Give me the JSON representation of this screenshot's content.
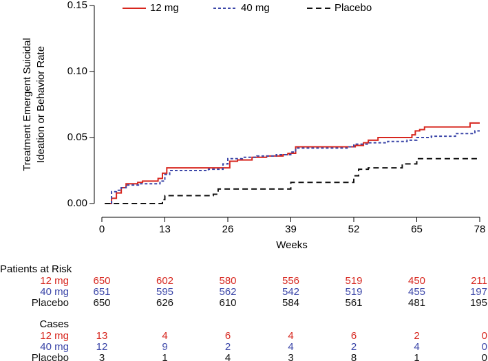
{
  "chart_data": {
    "type": "step",
    "y_label": [
      "Treatment Emergent Suicidal",
      "Ideation or Behavior Rate"
    ],
    "x_label": "Weeks",
    "xlim": [
      0,
      78
    ],
    "xticks": [
      0,
      13,
      26,
      39,
      52,
      65,
      78
    ],
    "ylim": [
      0,
      0.15
    ],
    "yticks": [
      {
        "value": 0,
        "label": "0.00"
      },
      {
        "value": 0.05,
        "label": "0.05"
      },
      {
        "value": 0.1,
        "label": "0.10"
      },
      {
        "value": 0.15,
        "label": "0.15"
      }
    ],
    "series": [
      {
        "name": "12 mg",
        "color": "#d7261e",
        "dash": "solid",
        "x": [
          0.6,
          2,
          3,
          4,
          5,
          7.4,
          8.4,
          11.6,
          12.5,
          13.4,
          26.4,
          28,
          31,
          34,
          37.4,
          38.4,
          40,
          52.3,
          54,
          55,
          57,
          64,
          64.7,
          65.6,
          66.6,
          76,
          78
        ],
        "values": [
          0,
          0.004,
          0.008,
          0.012,
          0.015,
          0.016,
          0.017,
          0.019,
          0.023,
          0.027,
          0.032,
          0.033,
          0.035,
          0.036,
          0.037,
          0.038,
          0.043,
          0.044,
          0.046,
          0.048,
          0.05,
          0.052,
          0.055,
          0.056,
          0.058,
          0.061,
          0.061
        ]
      },
      {
        "name": "40 mg",
        "color": "#3b46a8",
        "dash": "dotted",
        "x": [
          1,
          2,
          3,
          4,
          5,
          8,
          12,
          13,
          14,
          22,
          25,
          26,
          29,
          32,
          36,
          39,
          40,
          51,
          52,
          55,
          59,
          63,
          65,
          68,
          73,
          77,
          78
        ],
        "values": [
          0,
          0.009,
          0.01,
          0.012,
          0.014,
          0.015,
          0.017,
          0.022,
          0.025,
          0.026,
          0.03,
          0.034,
          0.035,
          0.036,
          0.037,
          0.039,
          0.042,
          0.043,
          0.045,
          0.046,
          0.047,
          0.048,
          0.05,
          0.051,
          0.053,
          0.055,
          0.055
        ]
      },
      {
        "name": "Placebo",
        "color": "#111111",
        "dash": "dashed",
        "x": [
          0.6,
          12.5,
          13,
          23,
          24,
          39,
          52,
          53,
          55,
          62,
          65,
          78
        ],
        "values": [
          0,
          0.003,
          0.006,
          0.007,
          0.011,
          0.016,
          0.021,
          0.026,
          0.027,
          0.03,
          0.034,
          0.034
        ]
      }
    ]
  },
  "risk_table": {
    "title": "Patients at Risk",
    "rows": [
      {
        "name": "12 mg",
        "values": [
          650,
          602,
          580,
          556,
          519,
          450,
          211
        ]
      },
      {
        "name": "40 mg",
        "values": [
          651,
          595,
          562,
          542,
          519,
          455,
          197
        ]
      },
      {
        "name": "Placebo",
        "values": [
          650,
          626,
          610,
          584,
          561,
          481,
          195
        ]
      }
    ]
  },
  "cases_table": {
    "title": "Cases",
    "rows": [
      {
        "name": "12 mg",
        "values": [
          13,
          4,
          6,
          4,
          6,
          2,
          0
        ]
      },
      {
        "name": "40 mg",
        "values": [
          12,
          9,
          2,
          4,
          2,
          4,
          0
        ]
      },
      {
        "name": "Placebo",
        "values": [
          3,
          1,
          4,
          3,
          8,
          1,
          0
        ]
      }
    ]
  }
}
